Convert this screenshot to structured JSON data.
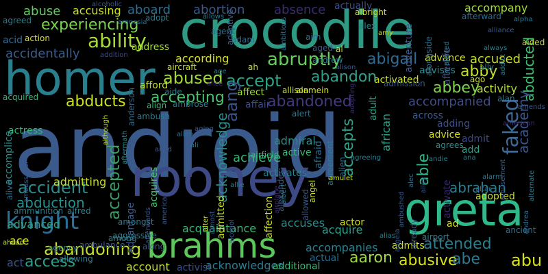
{
  "words": [
    {
      "text": "android",
      "color": "#3b5a8c"
    },
    {
      "text": "crocodile",
      "color": "#2e9a84"
    },
    {
      "text": "homer",
      "color": "#2a7f8e"
    },
    {
      "text": "rooney",
      "color": "#3e4a86"
    },
    {
      "text": "greta",
      "color": "#2fb88a"
    },
    {
      "text": "brahms",
      "color": "#5cc85a"
    },
    {
      "text": "knight",
      "color": "#2c7099"
    },
    {
      "text": "ability",
      "color": "#a5da3a"
    },
    {
      "text": "experiencing",
      "color": "#7dd24e"
    },
    {
      "text": "abruptly",
      "color": "#67cd5d"
    },
    {
      "text": "faked",
      "color": "#3e6a95"
    },
    {
      "text": "abigail",
      "color": "#2e6c92"
    },
    {
      "text": "accept",
      "color": "#2ea486"
    },
    {
      "text": "abandon",
      "color": "#2fa18a"
    },
    {
      "text": "abused",
      "color": "#a0da3a"
    },
    {
      "text": "abducts",
      "color": "#cde21e"
    },
    {
      "text": "accepting",
      "color": "#4bc06d"
    },
    {
      "text": "abandoned",
      "color": "#43387a"
    },
    {
      "text": "aang",
      "color": "#3a5489"
    },
    {
      "text": "accepts",
      "color": "#2fa28a"
    },
    {
      "text": "accident",
      "color": "#2c8b8c"
    },
    {
      "text": "abduction",
      "color": "#26918d"
    },
    {
      "text": "abandoning",
      "color": "#c3df2b"
    },
    {
      "text": "access",
      "color": "#2e9f8a"
    },
    {
      "text": "accepted",
      "color": "#3d9b63"
    },
    {
      "text": "abrahan",
      "color": "#2c808f"
    },
    {
      "text": "able",
      "color": "#2fb48c"
    },
    {
      "text": "attended",
      "color": "#2b7e8e"
    },
    {
      "text": "abusive",
      "color": "#d9e31a"
    },
    {
      "text": "aaron",
      "color": "#9fda3b"
    },
    {
      "text": "abe",
      "color": "#2c7a92"
    },
    {
      "text": "abu",
      "color": "#d6e21c"
    },
    {
      "text": "abby",
      "color": "#c0de2a"
    },
    {
      "text": "abbey",
      "color": "#7fd34e"
    },
    {
      "text": "abducted",
      "color": "#3fbf70"
    },
    {
      "text": "academy",
      "color": "#3a5589"
    },
    {
      "text": "acknowledge",
      "color": "#2c8b8c"
    },
    {
      "text": "abortion",
      "color": "#3b5a8a"
    },
    {
      "text": "absence",
      "color": "#3c2c6e"
    },
    {
      "text": "abuse",
      "color": "#62cb5f"
    },
    {
      "text": "aboard",
      "color": "#2e6f93"
    },
    {
      "text": "accusing",
      "color": "#c9e023"
    },
    {
      "text": "accompany",
      "color": "#9eda3b"
    },
    {
      "text": "accompanied",
      "color": "#3f4d85"
    },
    {
      "text": "accused",
      "color": "#c5df27"
    },
    {
      "text": "activity",
      "color": "#b4dd34"
    },
    {
      "text": "actress",
      "color": "#35b878"
    },
    {
      "text": "accomplice",
      "color": "#2c8d8c"
    },
    {
      "text": "accidentally",
      "color": "#3c5c8b"
    },
    {
      "text": "acid",
      "color": "#3a6c92"
    },
    {
      "text": "according",
      "color": "#d7e31b"
    },
    {
      "text": "address",
      "color": "#a9db37"
    },
    {
      "text": "advance",
      "color": "#d4e21d"
    },
    {
      "text": "advises",
      "color": "#2c8a8c"
    },
    {
      "text": "afterlife",
      "color": "#3f4d85"
    },
    {
      "text": "adventure",
      "color": "#3b5a8a"
    },
    {
      "text": "activated",
      "color": "#c8e024"
    },
    {
      "text": "achieve",
      "color": "#35b878"
    },
    {
      "text": "activates",
      "color": "#2c7d8e"
    },
    {
      "text": "actor",
      "color": "#d6e21c"
    },
    {
      "text": "accuses",
      "color": "#2c8b8c"
    },
    {
      "text": "acquire",
      "color": "#2fa18a"
    },
    {
      "text": "accompanies",
      "color": "#2a7f8e"
    },
    {
      "text": "acquaintance",
      "color": "#36b878"
    },
    {
      "text": "acquires",
      "color": "#4ac16d"
    },
    {
      "text": "advantage",
      "color": "#3b5a8a"
    },
    {
      "text": "account",
      "color": "#c5df27"
    },
    {
      "text": "acknowledges",
      "color": "#2c7a92"
    },
    {
      "text": "additional",
      "color": "#38b977"
    },
    {
      "text": "activist",
      "color": "#3b4d85"
    },
    {
      "text": "act",
      "color": "#3a5489"
    },
    {
      "text": "ace",
      "color": "#d2e21e"
    },
    {
      "text": "advanced",
      "color": "#2ea486"
    },
    {
      "text": "admitting",
      "color": "#c7df26"
    },
    {
      "text": "admitted",
      "color": "#c5df27"
    },
    {
      "text": "admiral",
      "color": "#2c8b8c"
    },
    {
      "text": "active",
      "color": "#36b878"
    },
    {
      "text": "advice",
      "color": "#d8e31b"
    },
    {
      "text": "admit",
      "color": "#3e4a86"
    },
    {
      "text": "adding",
      "color": "#3f4d85"
    },
    {
      "text": "across",
      "color": "#3b5a8a"
    },
    {
      "text": "african",
      "color": "#2fa28a"
    },
    {
      "text": "affection",
      "color": "#d0e11f"
    },
    {
      "text": "afraid",
      "color": "#2f6e93"
    },
    {
      "text": "agreement",
      "color": "#2c7a92"
    },
    {
      "text": "adoptive",
      "color": "#3b5a8a"
    },
    {
      "text": "adopted",
      "color": "#c7df26"
    },
    {
      "text": "activate",
      "color": "#3a2a6c"
    },
    {
      "text": "affair",
      "color": "#3f4d85"
    },
    {
      "text": "affect",
      "color": "#9fda3b"
    },
    {
      "text": "afford",
      "color": "#c2df29"
    },
    {
      "text": "aircraft",
      "color": "#c5df27"
    },
    {
      "text": "adopt",
      "color": "#2c7d8e"
    },
    {
      "text": "adult",
      "color": "#2fa18a"
    },
    {
      "text": "add",
      "color": "#2fa18a"
    },
    {
      "text": "agrees",
      "color": "#2c8b8c"
    },
    {
      "text": "alan",
      "color": "#2c7d8e"
    },
    {
      "text": "admits",
      "color": "#c9e023"
    },
    {
      "text": "actual",
      "color": "#2c6d92"
    },
    {
      "text": "ad",
      "color": "#d6e21c"
    },
    {
      "text": "airport",
      "color": "#2c7d8e"
    },
    {
      "text": "actually",
      "color": "#3f4d85"
    },
    {
      "text": "adam",
      "color": "#2c6d92"
    },
    {
      "text": "ah",
      "color": "#c9e023"
    },
    {
      "text": "ago",
      "color": "#c7df26"
    },
    {
      "text": "al",
      "color": "#c9e023"
    },
    {
      "text": "aged",
      "color": "#3b5a8a"
    },
    {
      "text": "aim",
      "color": "#2c6d92"
    },
    {
      "text": "agent",
      "color": "#2c6d92"
    },
    {
      "text": "alex",
      "color": "#2c7d8e"
    },
    {
      "text": "alliance",
      "color": "#3b5a8a"
    },
    {
      "text": "afterward",
      "color": "#2c6d92"
    },
    {
      "text": "agreed",
      "color": "#2c7d8e"
    },
    {
      "text": "action",
      "color": "#d6e21c"
    },
    {
      "text": "alcoholic",
      "color": "#3b5a8a"
    },
    {
      "text": "albright",
      "color": "#d2e21e"
    },
    {
      "text": "allows",
      "color": "#2c7a92"
    },
    {
      "text": "amnesia",
      "color": "#2c6d92"
    },
    {
      "text": "ambitious",
      "color": "#2c6d92"
    },
    {
      "text": "amy",
      "color": "#c9e023"
    },
    {
      "text": "alpha",
      "color": "#2c7a92"
    },
    {
      "text": "always",
      "color": "#2c7d8e"
    },
    {
      "text": "aided",
      "color": "#c7df26"
    },
    {
      "text": "alerted",
      "color": "#2c7d8e"
    },
    {
      "text": "alongside",
      "color": "#2c6d92"
    },
    {
      "text": "addict",
      "color": "#2c7d8e"
    },
    {
      "text": "addition",
      "color": "#3f4d85"
    },
    {
      "text": "ally",
      "color": "#2c7d8e"
    },
    {
      "text": "allison",
      "color": "#c7df26"
    },
    {
      "text": "alamein",
      "color": "#d6e21c"
    },
    {
      "text": "andrew",
      "color": "#2c7a92"
    },
    {
      "text": "alison",
      "color": "#3b5a8a"
    },
    {
      "text": "adopting",
      "color": "#3a2a6c"
    },
    {
      "text": "age",
      "color": "#2c7a92"
    },
    {
      "text": "alice",
      "color": "#3a2a6c"
    },
    {
      "text": "aide",
      "color": "#2c7d8e"
    },
    {
      "text": "acquired",
      "color": "#36b878"
    },
    {
      "text": "anderson",
      "color": "#2c6d92"
    },
    {
      "text": "align",
      "color": "#36b878"
    },
    {
      "text": "ambrose",
      "color": "#2c7d8e"
    },
    {
      "text": "ambush",
      "color": "#2c7d8e"
    },
    {
      "text": "admission",
      "color": "#3b5a8a"
    },
    {
      "text": "alert",
      "color": "#2c7a92"
    },
    {
      "text": "american",
      "color": "#3a2a6c"
    },
    {
      "text": "amends",
      "color": "#3b5a8a"
    },
    {
      "text": "alive",
      "color": "#2c6d92"
    },
    {
      "text": "ambassador",
      "color": "#3b5a8a"
    },
    {
      "text": "although",
      "color": "#c7df26"
    },
    {
      "text": "aftermath",
      "color": "#2c8b8c"
    },
    {
      "text": "aging",
      "color": "#3b5a8a"
    },
    {
      "text": "allen",
      "color": "#2c6d92"
    },
    {
      "text": "amid",
      "color": "#3b5a8a"
    },
    {
      "text": "ali",
      "color": "#2c7d8e"
    },
    {
      "text": "airfield",
      "color": "#36b878"
    },
    {
      "text": "alien",
      "color": "#2c6d92"
    },
    {
      "text": "agreeing",
      "color": "#2c7d8e"
    },
    {
      "text": "ana",
      "color": "#2c7d8e"
    },
    {
      "text": "andie",
      "color": "#2c7d8e"
    },
    {
      "text": "amusement",
      "color": "#3b5a8a"
    },
    {
      "text": "alternate",
      "color": "#2c7d8e"
    },
    {
      "text": "alarm",
      "color": "#2c7d8e"
    },
    {
      "text": "amulet",
      "color": "#d2e21e"
    },
    {
      "text": "alec",
      "color": "#2c6d92"
    },
    {
      "text": "alexander",
      "color": "#3b5a8a"
    },
    {
      "text": "ambushed",
      "color": "#3b5a8a"
    },
    {
      "text": "altar",
      "color": "#2c6d92"
    },
    {
      "text": "alley",
      "color": "#3b5a8a"
    },
    {
      "text": "andrea",
      "color": "#2c6d92"
    },
    {
      "text": "ancient",
      "color": "#2c6d92"
    },
    {
      "text": "alias",
      "color": "#2c7d8e"
    },
    {
      "text": "already",
      "color": "#3b5a8a"
    },
    {
      "text": "angela",
      "color": "#3b5a8a"
    },
    {
      "text": "airplane",
      "color": "#3a2a6c"
    },
    {
      "text": "albert",
      "color": "#2c7d8e"
    },
    {
      "text": "angel",
      "color": "#c7df26"
    },
    {
      "text": "allowed",
      "color": "#3b5a8a"
    },
    {
      "text": "ammunition",
      "color": "#2c7d8e"
    },
    {
      "text": "alfred",
      "color": "#2c7d8e"
    },
    {
      "text": "ahead",
      "color": "#c7df26"
    },
    {
      "text": "alter",
      "color": "#c7df26"
    },
    {
      "text": "agency",
      "color": "#2c7d8e"
    },
    {
      "text": "allowing",
      "color": "#2c7d8e"
    },
    {
      "text": "aggressive",
      "color": "#2c7d8e"
    },
    {
      "text": "amongst",
      "color": "#2c7d8e"
    },
    {
      "text": "ambulance",
      "color": "#3b5a8a"
    },
    {
      "text": "among",
      "color": "#2c7d8e"
    },
    {
      "text": "along",
      "color": "#3b5a8a"
    },
    {
      "text": "america",
      "color": "#3b5a8a"
    },
    {
      "text": "allie",
      "color": "#2c7d8e"
    },
    {
      "text": "afterwards",
      "color": "#3b5a8a"
    },
    {
      "text": "almost",
      "color": "#3b5a8a"
    },
    {
      "text": "alcohol",
      "color": "#3b5a8a"
    }
  ]
}
